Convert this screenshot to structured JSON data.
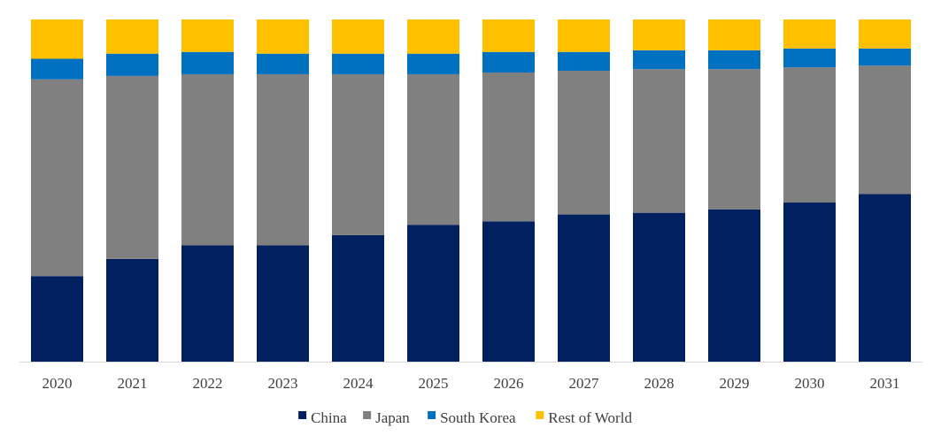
{
  "chart_data": {
    "type": "bar",
    "stacked": true,
    "normalized": true,
    "title": "",
    "xlabel": "",
    "ylabel": "",
    "ylim": [
      0,
      100
    ],
    "grid": false,
    "legend_position": "bottom",
    "categories": [
      "2020",
      "2021",
      "2022",
      "2023",
      "2024",
      "2025",
      "2026",
      "2027",
      "2028",
      "2029",
      "2030",
      "2031"
    ],
    "series": [
      {
        "name": "China",
        "color": "#002060",
        "values": [
          25,
          30,
          34,
          34,
          37,
          40,
          41,
          43,
          43.5,
          44.5,
          46.5,
          49
        ]
      },
      {
        "name": "Japan",
        "color": "#808080",
        "values": [
          57.5,
          53.5,
          50,
          50,
          47,
          44,
          43.5,
          42,
          42,
          41,
          39.5,
          37.5
        ]
      },
      {
        "name": "South Korea",
        "color": "#0070C0",
        "values": [
          6,
          6.5,
          6.5,
          6,
          6,
          6,
          6,
          5.5,
          5.5,
          5.5,
          5.5,
          5
        ]
      },
      {
        "name": "Rest of World",
        "color": "#FFC000",
        "values": [
          11.5,
          10,
          9.5,
          10,
          10,
          10,
          9.5,
          9.5,
          9,
          9,
          8.5,
          8.5
        ]
      }
    ]
  }
}
